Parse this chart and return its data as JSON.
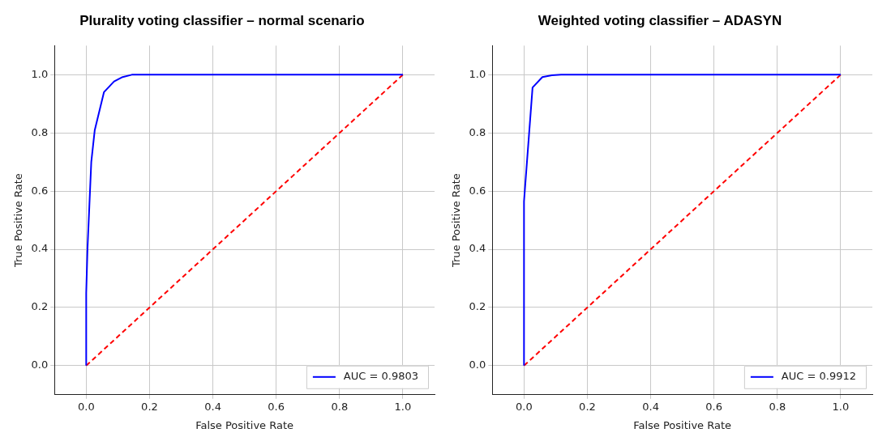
{
  "chart_data": [
    {
      "type": "line",
      "title": "Plurality voting classifier – normal scenario",
      "xlabel": "False Positive Rate",
      "ylabel": "True Positive Rate",
      "xlim": [
        -0.1,
        1.1
      ],
      "ylim": [
        -0.1,
        1.1
      ],
      "xticks": [
        {
          "value": 0,
          "label": "0.0"
        },
        {
          "value": 0.2,
          "label": "0.2"
        },
        {
          "value": 0.4,
          "label": "0.4"
        },
        {
          "value": 0.6,
          "label": "0.6"
        },
        {
          "value": 0.8,
          "label": "0.8"
        },
        {
          "value": 1,
          "label": "1.0"
        }
      ],
      "yticks": [
        {
          "value": 0,
          "label": "0.0"
        },
        {
          "value": 0.2,
          "label": "0.2"
        },
        {
          "value": 0.4,
          "label": "0.4"
        },
        {
          "value": 0.6,
          "label": "0.6"
        },
        {
          "value": 0.8,
          "label": "0.8"
        },
        {
          "value": 1,
          "label": "1.0"
        }
      ],
      "grid": true,
      "legend": "bottom right",
      "series": [
        {
          "name": "AUC = 0.9803",
          "color": "#0000ff",
          "line_style": "solid",
          "x": [
            0,
            0,
            0.004,
            0.016,
            0.027,
            0.056,
            0.088,
            0.115,
            0.144,
            1
          ],
          "values": [
            0,
            0.25,
            0.4,
            0.7,
            0.81,
            0.94,
            0.977,
            0.992,
            1,
            1
          ]
        },
        {
          "color": "#ff0000",
          "line_style": "dashed",
          "x": [
            0,
            1
          ],
          "values": [
            0,
            1
          ]
        }
      ]
    },
    {
      "type": "line",
      "title": "Weighted voting classifier – ADASYN",
      "xlabel": "False Positive Rate",
      "ylabel": "True Positive Rate",
      "xlim": [
        -0.1,
        1.1
      ],
      "ylim": [
        -0.1,
        1.1
      ],
      "xticks": [
        {
          "value": 0,
          "label": "0.0"
        },
        {
          "value": 0.2,
          "label": "0.2"
        },
        {
          "value": 0.4,
          "label": "0.4"
        },
        {
          "value": 0.6,
          "label": "0.6"
        },
        {
          "value": 0.8,
          "label": "0.8"
        },
        {
          "value": 1,
          "label": "1.0"
        }
      ],
      "yticks": [
        {
          "value": 0,
          "label": "0.0"
        },
        {
          "value": 0.2,
          "label": "0.2"
        },
        {
          "value": 0.4,
          "label": "0.4"
        },
        {
          "value": 0.6,
          "label": "0.6"
        },
        {
          "value": 0.8,
          "label": "0.8"
        },
        {
          "value": 1,
          "label": "1.0"
        }
      ],
      "grid": true,
      "legend": "bottom right",
      "series": [
        {
          "name": "AUC = 0.9912",
          "color": "#0000ff",
          "line_style": "solid",
          "x": [
            0,
            0,
            0.027,
            0.058,
            0.088,
            0.117,
            1
          ],
          "values": [
            0,
            0.565,
            0.956,
            0.992,
            0.998,
            1,
            1
          ]
        },
        {
          "color": "#ff0000",
          "line_style": "dashed",
          "x": [
            0,
            1
          ],
          "values": [
            0,
            1
          ]
        }
      ]
    }
  ]
}
